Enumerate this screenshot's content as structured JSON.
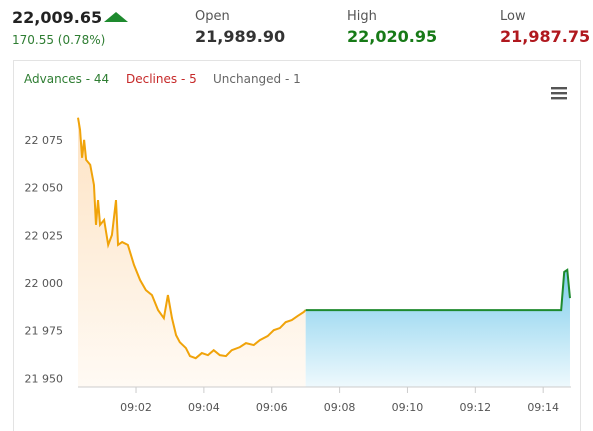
{
  "header": {
    "price": "22,009.65",
    "change": "170.55 (0.78%)",
    "open_label": "Open",
    "open": "21,989.90",
    "high_label": "High",
    "high": "22,020.95",
    "low_label": "Low",
    "low": "21,987.75"
  },
  "breadth": {
    "advances": "Advances - 44",
    "declines": "Declines - 5",
    "unchanged": "Unchanged - 1"
  },
  "chart_data": {
    "type": "line",
    "xlim": [
      0.29,
      14.82
    ],
    "ylim": [
      21946,
      22097
    ],
    "xticks": [
      {
        "value": 2,
        "label": "09:02"
      },
      {
        "value": 4,
        "label": "09:04"
      },
      {
        "value": 6,
        "label": "09:06"
      },
      {
        "value": 8,
        "label": "09:08"
      },
      {
        "value": 10,
        "label": "09:10"
      },
      {
        "value": 12,
        "label": "09:12"
      },
      {
        "value": 14,
        "label": "09:14"
      }
    ],
    "yticks": [
      {
        "value": 21950,
        "label": "21 950"
      },
      {
        "value": 21975,
        "label": "21 975"
      },
      {
        "value": 22000,
        "label": "22 000"
      },
      {
        "value": 22025,
        "label": "22 025"
      },
      {
        "value": 22050,
        "label": "22 050"
      },
      {
        "value": 22075,
        "label": "22 075"
      }
    ],
    "series": [
      {
        "color": "#f0a30a",
        "fill": "#fde3c4",
        "x": [
          0.29,
          0.35,
          0.41,
          0.47,
          0.53,
          0.65,
          0.76,
          0.82,
          0.88,
          0.94,
          1.06,
          1.18,
          1.29,
          1.41,
          1.47,
          1.59,
          1.76,
          1.94,
          2.12,
          2.29,
          2.47,
          2.65,
          2.82,
          2.94,
          3.06,
          3.18,
          3.29,
          3.47,
          3.59,
          3.76,
          3.94,
          4.12,
          4.29,
          4.47,
          4.65,
          4.82,
          5.06,
          5.24,
          5.47,
          5.65,
          5.88,
          6.06,
          6.24,
          6.41,
          6.59,
          6.76,
          6.94,
          7.0
        ],
        "values": [
          22087.2,
          22080.9,
          22066.2,
          22075.6,
          22065.1,
          22062.5,
          22052,
          22031,
          22044,
          22031,
          22033.6,
          22020.5,
          22025.7,
          22044,
          22020.5,
          22022,
          22020.5,
          22010,
          22002.1,
          21996.8,
          21994.2,
          21986.3,
          21982.1,
          21994.2,
          21982.1,
          21973.2,
          21969.5,
          21966.4,
          21962.2,
          21961.1,
          21963.8,
          21962.7,
          21965.3,
          21962.7,
          21962.2,
          21965.3,
          21966.9,
          21969,
          21968,
          21970.6,
          21972.7,
          21975.8,
          21976.9,
          21980,
          21981.1,
          21983.2,
          21985.3,
          21986.3
        ]
      },
      {
        "color": "#1e8a2e",
        "fill": "#7fcdec",
        "x": [
          7.0,
          14.53,
          14.62,
          14.71,
          14.79
        ],
        "values": [
          21986.3,
          21986.3,
          22006.3,
          22007.4,
          21992.6
        ]
      }
    ]
  }
}
